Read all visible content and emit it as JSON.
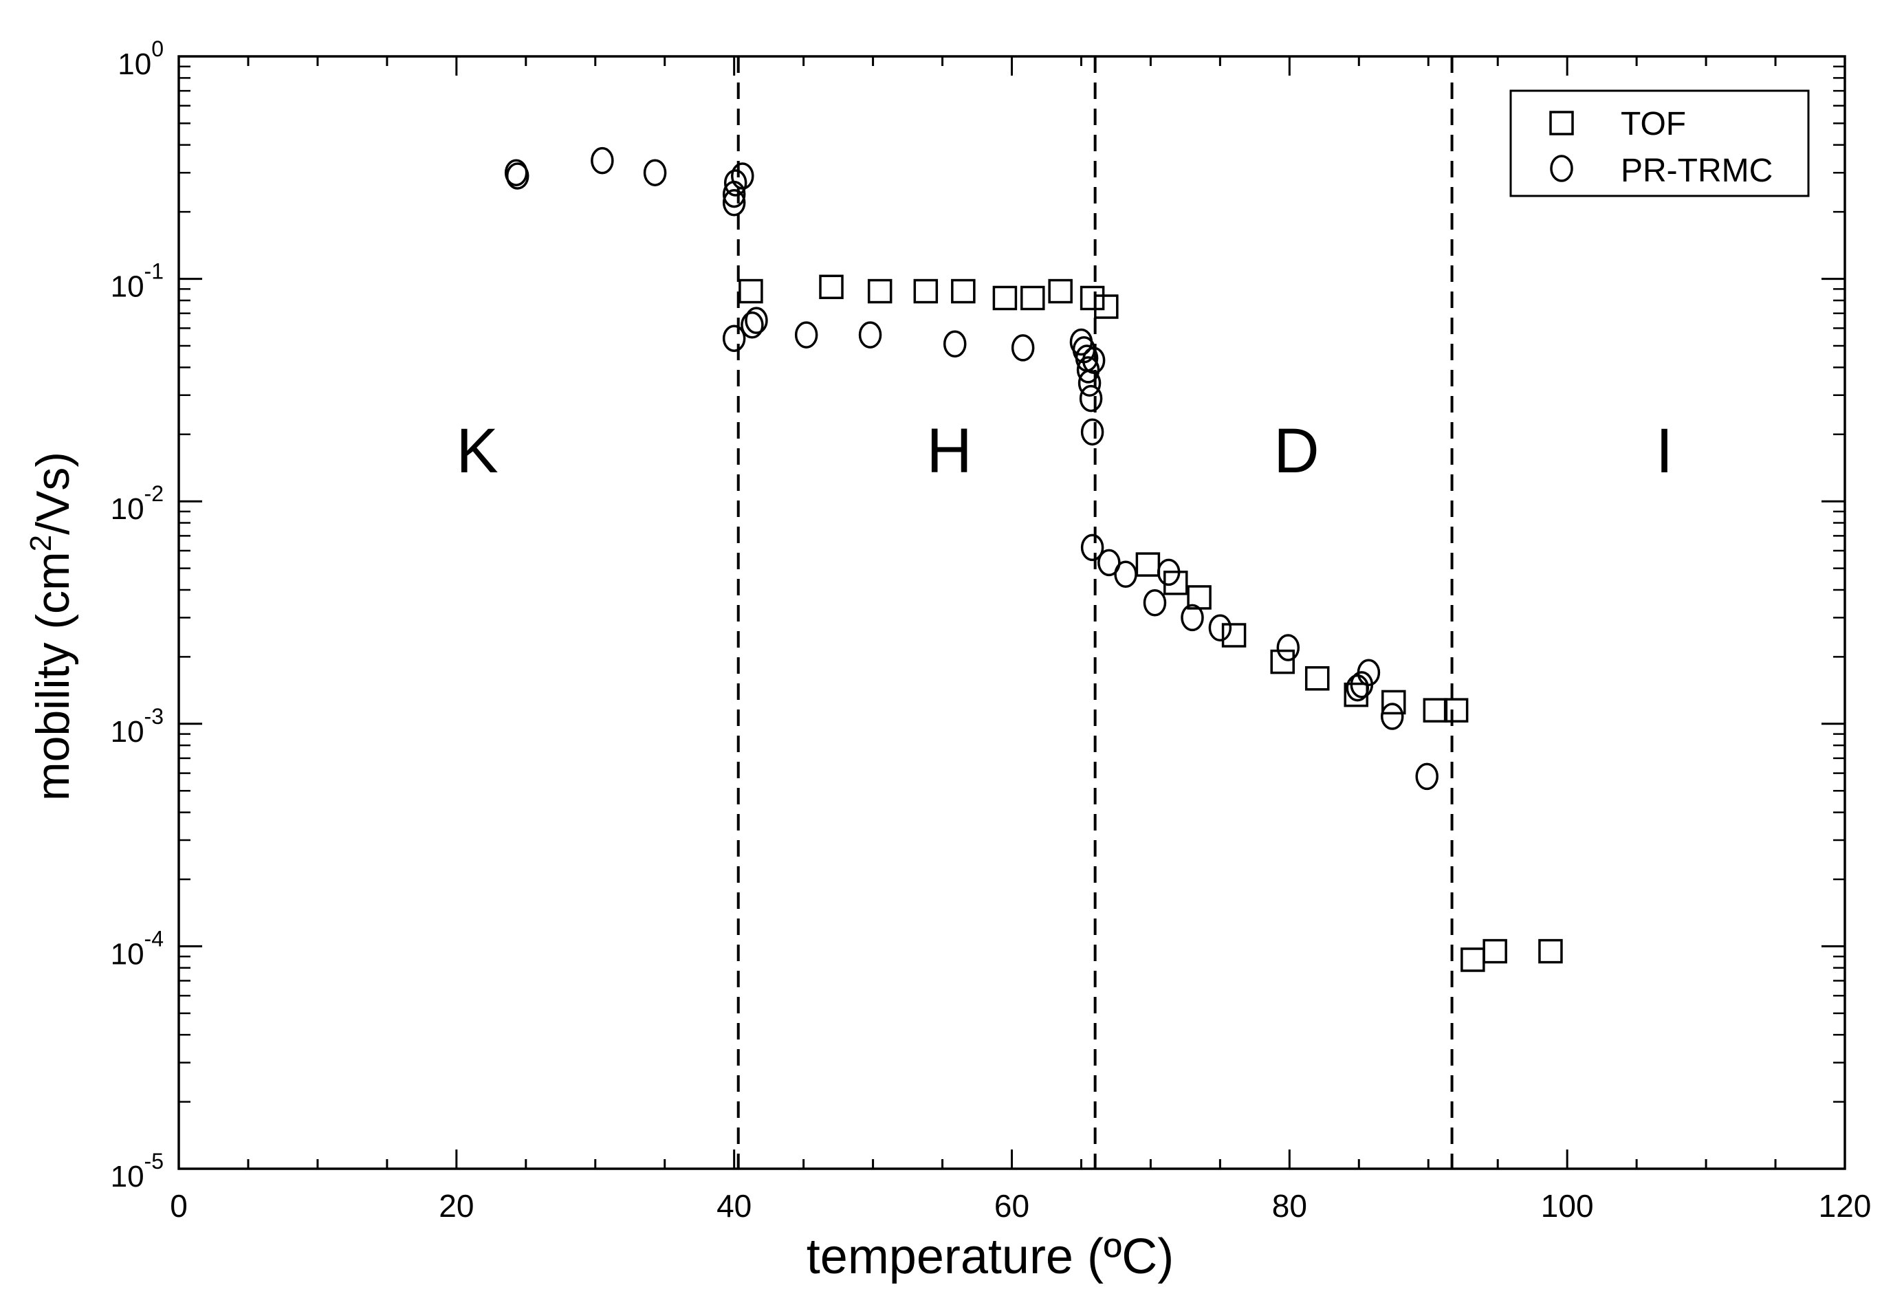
{
  "chart_data": {
    "type": "scatter",
    "title": "",
    "xlabel": "temperature (ºC)",
    "ylabel_main": "mobility (cm",
    "ylabel_sup": "2",
    "ylabel_tail": "/Vs)",
    "xlim": [
      0,
      120
    ],
    "ylim": [
      1e-05,
      1
    ],
    "yscale": "log",
    "grid": false,
    "legend_position": "top-right",
    "x_ticks": [
      {
        "value": 0,
        "label": "0"
      },
      {
        "value": 20,
        "label": "20"
      },
      {
        "value": 40,
        "label": "40"
      },
      {
        "value": 60,
        "label": "60"
      },
      {
        "value": 80,
        "label": "80"
      },
      {
        "value": 100,
        "label": "100"
      },
      {
        "value": 120,
        "label": "120"
      }
    ],
    "y_ticks": [
      {
        "exp": 0,
        "base": "10",
        "sup": "0"
      },
      {
        "exp": -1,
        "base": "10",
        "sup": "-1"
      },
      {
        "exp": -2,
        "base": "10",
        "sup": "-2"
      },
      {
        "exp": -3,
        "base": "10",
        "sup": "-3"
      },
      {
        "exp": -4,
        "base": "10",
        "sup": "-4"
      },
      {
        "exp": -5,
        "base": "10",
        "sup": "-5"
      }
    ],
    "phase_boundaries": [
      40.3,
      66,
      91.7
    ],
    "phase_labels": [
      {
        "label": "K",
        "x": 21.5,
        "y": 0.0135
      },
      {
        "label": "H",
        "x": 55.5,
        "y": 0.0135
      },
      {
        "label": "D",
        "x": 80.5,
        "y": 0.0135
      },
      {
        "label": "I",
        "x": 107,
        "y": 0.0135
      }
    ],
    "series": [
      {
        "name": "TOF",
        "marker": "square",
        "points": [
          [
            41.2,
            0.088
          ],
          [
            47.0,
            0.092
          ],
          [
            50.5,
            0.088
          ],
          [
            53.8,
            0.088
          ],
          [
            56.5,
            0.088
          ],
          [
            59.5,
            0.082
          ],
          [
            61.5,
            0.082
          ],
          [
            63.5,
            0.088
          ],
          [
            65.8,
            0.082
          ],
          [
            66.8,
            0.075
          ],
          [
            69.8,
            0.0052
          ],
          [
            71.8,
            0.0043
          ],
          [
            73.5,
            0.0037
          ],
          [
            76.0,
            0.0025
          ],
          [
            79.5,
            0.0019
          ],
          [
            82.0,
            0.0016
          ],
          [
            84.8,
            0.00135
          ],
          [
            87.5,
            0.00125
          ],
          [
            90.5,
            0.00115
          ],
          [
            92.0,
            0.00115
          ],
          [
            93.2,
            8.7e-05
          ],
          [
            94.8,
            9.5e-05
          ],
          [
            98.8,
            9.5e-05
          ]
        ]
      },
      {
        "name": "PR-TRMC",
        "marker": "circle",
        "points": [
          [
            24.3,
            0.3
          ],
          [
            24.4,
            0.29
          ],
          [
            30.5,
            0.34
          ],
          [
            34.3,
            0.3
          ],
          [
            40.0,
            0.22
          ],
          [
            40.0,
            0.24
          ],
          [
            40.1,
            0.27
          ],
          [
            40.6,
            0.29
          ],
          [
            40.0,
            0.054
          ],
          [
            41.3,
            0.062
          ],
          [
            41.6,
            0.065
          ],
          [
            45.2,
            0.056
          ],
          [
            49.8,
            0.056
          ],
          [
            55.9,
            0.051
          ],
          [
            60.8,
            0.049
          ],
          [
            65.0,
            0.052
          ],
          [
            65.2,
            0.048
          ],
          [
            65.4,
            0.044
          ],
          [
            65.5,
            0.039
          ],
          [
            65.6,
            0.034
          ],
          [
            65.7,
            0.029
          ],
          [
            65.8,
            0.0205
          ],
          [
            65.9,
            0.043
          ],
          [
            65.8,
            0.0062
          ],
          [
            67.0,
            0.0053
          ],
          [
            68.2,
            0.0047
          ],
          [
            70.3,
            0.0035
          ],
          [
            71.3,
            0.0048
          ],
          [
            73.0,
            0.003
          ],
          [
            75.0,
            0.0027
          ],
          [
            79.9,
            0.0022
          ],
          [
            84.9,
            0.00145
          ],
          [
            85.2,
            0.0015
          ],
          [
            85.7,
            0.0017
          ],
          [
            87.4,
            0.00108
          ],
          [
            89.9,
            0.00058
          ]
        ]
      }
    ]
  }
}
